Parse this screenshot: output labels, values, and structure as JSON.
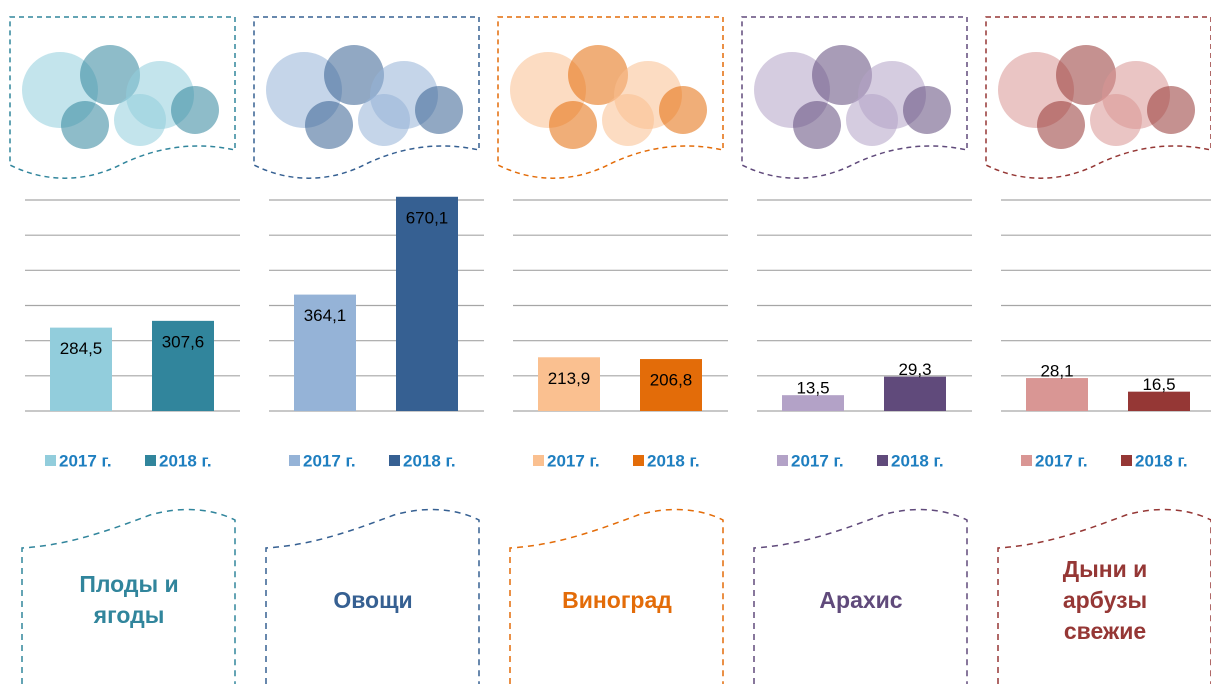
{
  "chart_data": [
    {
      "type": "bar",
      "title": "Плоды и ягоды",
      "ylim": [
        0,
        720
      ],
      "yticks": [
        0,
        120,
        240,
        360,
        480,
        600,
        720
      ],
      "grid": true,
      "series": [
        {
          "name": "2017 г.",
          "color": "#92cddc",
          "values": [
            284.5
          ],
          "value_labels": [
            "284,5"
          ]
        },
        {
          "name": "2018 г.",
          "color": "#31859c",
          "values": [
            307.6
          ],
          "value_labels": [
            "307,6"
          ]
        }
      ]
    },
    {
      "type": "bar",
      "title": "Овощи",
      "ylim": [
        0,
        660
      ],
      "yticks": [
        0,
        110,
        220,
        330,
        440,
        550,
        660
      ],
      "grid": true,
      "series": [
        {
          "name": "2017 г.",
          "color": "#95b3d7",
          "values": [
            364.1
          ],
          "value_labels": [
            "364,1"
          ]
        },
        {
          "name": "2018 г.",
          "color": "#366092",
          "values": [
            670.1
          ],
          "value_labels": [
            "670,1"
          ]
        }
      ]
    },
    {
      "type": "bar",
      "title": "Виноград",
      "ylim": [
        0,
        840
      ],
      "yticks": [
        0,
        140,
        280,
        420,
        560,
        700,
        840
      ],
      "grid": true,
      "series": [
        {
          "name": "2017 г.",
          "color": "#fac090",
          "values": [
            213.9
          ],
          "value_labels": [
            "213,9"
          ]
        },
        {
          "name": "2018 г.",
          "color": "#e36c09",
          "values": [
            206.8
          ],
          "value_labels": [
            "206,8"
          ]
        }
      ]
    },
    {
      "type": "bar",
      "title": "Арахис",
      "ylim": [
        0,
        180
      ],
      "yticks": [
        0,
        30,
        60,
        90,
        120,
        150,
        180
      ],
      "grid": true,
      "series": [
        {
          "name": "2017 г.",
          "color": "#b3a2c7",
          "values": [
            13.5
          ],
          "value_labels": [
            "13,5"
          ]
        },
        {
          "name": "2018 г.",
          "color": "#604a7b",
          "values": [
            29.3
          ],
          "value_labels": [
            "29,3"
          ]
        }
      ]
    },
    {
      "type": "bar",
      "title": "Дыни и арбузы свежие",
      "ylim": [
        0,
        180
      ],
      "yticks": [
        0,
        30,
        60,
        90,
        120,
        150,
        180
      ],
      "grid": true,
      "series": [
        {
          "name": "2017 г.",
          "color": "#d99694",
          "values": [
            28.1
          ],
          "value_labels": [
            "28,1"
          ]
        },
        {
          "name": "2018 г.",
          "color": "#953735",
          "values": [
            16.5
          ],
          "value_labels": [
            "16,5"
          ]
        }
      ]
    }
  ]
}
